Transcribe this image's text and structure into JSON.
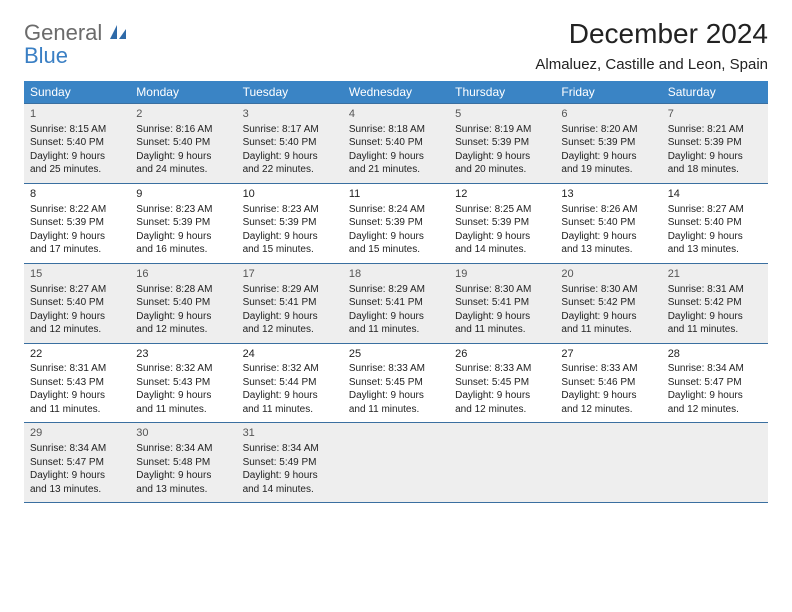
{
  "logo": {
    "general": "General",
    "blue": "Blue"
  },
  "title": "December 2024",
  "subtitle": "Almaluez, Castille and Leon, Spain",
  "weekdays": [
    "Sunday",
    "Monday",
    "Tuesday",
    "Wednesday",
    "Thursday",
    "Friday",
    "Saturday"
  ],
  "colors": {
    "header_bg": "#3a84c5",
    "header_text": "#ffffff",
    "border": "#3a6fa0",
    "gray_bg": "#eeeeee",
    "logo_gray": "#6b6b6b",
    "logo_blue": "#3a7fc4"
  },
  "weeks": [
    [
      {
        "n": "1",
        "gray": true,
        "sr": "Sunrise: 8:15 AM",
        "ss": "Sunset: 5:40 PM",
        "d1": "Daylight: 9 hours",
        "d2": "and 25 minutes."
      },
      {
        "n": "2",
        "gray": true,
        "sr": "Sunrise: 8:16 AM",
        "ss": "Sunset: 5:40 PM",
        "d1": "Daylight: 9 hours",
        "d2": "and 24 minutes."
      },
      {
        "n": "3",
        "gray": true,
        "sr": "Sunrise: 8:17 AM",
        "ss": "Sunset: 5:40 PM",
        "d1": "Daylight: 9 hours",
        "d2": "and 22 minutes."
      },
      {
        "n": "4",
        "gray": true,
        "sr": "Sunrise: 8:18 AM",
        "ss": "Sunset: 5:40 PM",
        "d1": "Daylight: 9 hours",
        "d2": "and 21 minutes."
      },
      {
        "n": "5",
        "gray": true,
        "sr": "Sunrise: 8:19 AM",
        "ss": "Sunset: 5:39 PM",
        "d1": "Daylight: 9 hours",
        "d2": "and 20 minutes."
      },
      {
        "n": "6",
        "gray": true,
        "sr": "Sunrise: 8:20 AM",
        "ss": "Sunset: 5:39 PM",
        "d1": "Daylight: 9 hours",
        "d2": "and 19 minutes."
      },
      {
        "n": "7",
        "gray": true,
        "sr": "Sunrise: 8:21 AM",
        "ss": "Sunset: 5:39 PM",
        "d1": "Daylight: 9 hours",
        "d2": "and 18 minutes."
      }
    ],
    [
      {
        "n": "8",
        "sr": "Sunrise: 8:22 AM",
        "ss": "Sunset: 5:39 PM",
        "d1": "Daylight: 9 hours",
        "d2": "and 17 minutes."
      },
      {
        "n": "9",
        "sr": "Sunrise: 8:23 AM",
        "ss": "Sunset: 5:39 PM",
        "d1": "Daylight: 9 hours",
        "d2": "and 16 minutes."
      },
      {
        "n": "10",
        "sr": "Sunrise: 8:23 AM",
        "ss": "Sunset: 5:39 PM",
        "d1": "Daylight: 9 hours",
        "d2": "and 15 minutes."
      },
      {
        "n": "11",
        "sr": "Sunrise: 8:24 AM",
        "ss": "Sunset: 5:39 PM",
        "d1": "Daylight: 9 hours",
        "d2": "and 15 minutes."
      },
      {
        "n": "12",
        "sr": "Sunrise: 8:25 AM",
        "ss": "Sunset: 5:39 PM",
        "d1": "Daylight: 9 hours",
        "d2": "and 14 minutes."
      },
      {
        "n": "13",
        "sr": "Sunrise: 8:26 AM",
        "ss": "Sunset: 5:40 PM",
        "d1": "Daylight: 9 hours",
        "d2": "and 13 minutes."
      },
      {
        "n": "14",
        "sr": "Sunrise: 8:27 AM",
        "ss": "Sunset: 5:40 PM",
        "d1": "Daylight: 9 hours",
        "d2": "and 13 minutes."
      }
    ],
    [
      {
        "n": "15",
        "gray": true,
        "sr": "Sunrise: 8:27 AM",
        "ss": "Sunset: 5:40 PM",
        "d1": "Daylight: 9 hours",
        "d2": "and 12 minutes."
      },
      {
        "n": "16",
        "gray": true,
        "sr": "Sunrise: 8:28 AM",
        "ss": "Sunset: 5:40 PM",
        "d1": "Daylight: 9 hours",
        "d2": "and 12 minutes."
      },
      {
        "n": "17",
        "gray": true,
        "sr": "Sunrise: 8:29 AM",
        "ss": "Sunset: 5:41 PM",
        "d1": "Daylight: 9 hours",
        "d2": "and 12 minutes."
      },
      {
        "n": "18",
        "gray": true,
        "sr": "Sunrise: 8:29 AM",
        "ss": "Sunset: 5:41 PM",
        "d1": "Daylight: 9 hours",
        "d2": "and 11 minutes."
      },
      {
        "n": "19",
        "gray": true,
        "sr": "Sunrise: 8:30 AM",
        "ss": "Sunset: 5:41 PM",
        "d1": "Daylight: 9 hours",
        "d2": "and 11 minutes."
      },
      {
        "n": "20",
        "gray": true,
        "sr": "Sunrise: 8:30 AM",
        "ss": "Sunset: 5:42 PM",
        "d1": "Daylight: 9 hours",
        "d2": "and 11 minutes."
      },
      {
        "n": "21",
        "gray": true,
        "sr": "Sunrise: 8:31 AM",
        "ss": "Sunset: 5:42 PM",
        "d1": "Daylight: 9 hours",
        "d2": "and 11 minutes."
      }
    ],
    [
      {
        "n": "22",
        "sr": "Sunrise: 8:31 AM",
        "ss": "Sunset: 5:43 PM",
        "d1": "Daylight: 9 hours",
        "d2": "and 11 minutes."
      },
      {
        "n": "23",
        "sr": "Sunrise: 8:32 AM",
        "ss": "Sunset: 5:43 PM",
        "d1": "Daylight: 9 hours",
        "d2": "and 11 minutes."
      },
      {
        "n": "24",
        "sr": "Sunrise: 8:32 AM",
        "ss": "Sunset: 5:44 PM",
        "d1": "Daylight: 9 hours",
        "d2": "and 11 minutes."
      },
      {
        "n": "25",
        "sr": "Sunrise: 8:33 AM",
        "ss": "Sunset: 5:45 PM",
        "d1": "Daylight: 9 hours",
        "d2": "and 11 minutes."
      },
      {
        "n": "26",
        "sr": "Sunrise: 8:33 AM",
        "ss": "Sunset: 5:45 PM",
        "d1": "Daylight: 9 hours",
        "d2": "and 12 minutes."
      },
      {
        "n": "27",
        "sr": "Sunrise: 8:33 AM",
        "ss": "Sunset: 5:46 PM",
        "d1": "Daylight: 9 hours",
        "d2": "and 12 minutes."
      },
      {
        "n": "28",
        "sr": "Sunrise: 8:34 AM",
        "ss": "Sunset: 5:47 PM",
        "d1": "Daylight: 9 hours",
        "d2": "and 12 minutes."
      }
    ],
    [
      {
        "n": "29",
        "gray": true,
        "sr": "Sunrise: 8:34 AM",
        "ss": "Sunset: 5:47 PM",
        "d1": "Daylight: 9 hours",
        "d2": "and 13 minutes."
      },
      {
        "n": "30",
        "gray": true,
        "sr": "Sunrise: 8:34 AM",
        "ss": "Sunset: 5:48 PM",
        "d1": "Daylight: 9 hours",
        "d2": "and 13 minutes."
      },
      {
        "n": "31",
        "gray": true,
        "sr": "Sunrise: 8:34 AM",
        "ss": "Sunset: 5:49 PM",
        "d1": "Daylight: 9 hours",
        "d2": "and 14 minutes."
      },
      {
        "empty": true
      },
      {
        "empty": true
      },
      {
        "empty": true
      },
      {
        "empty": true
      }
    ]
  ]
}
